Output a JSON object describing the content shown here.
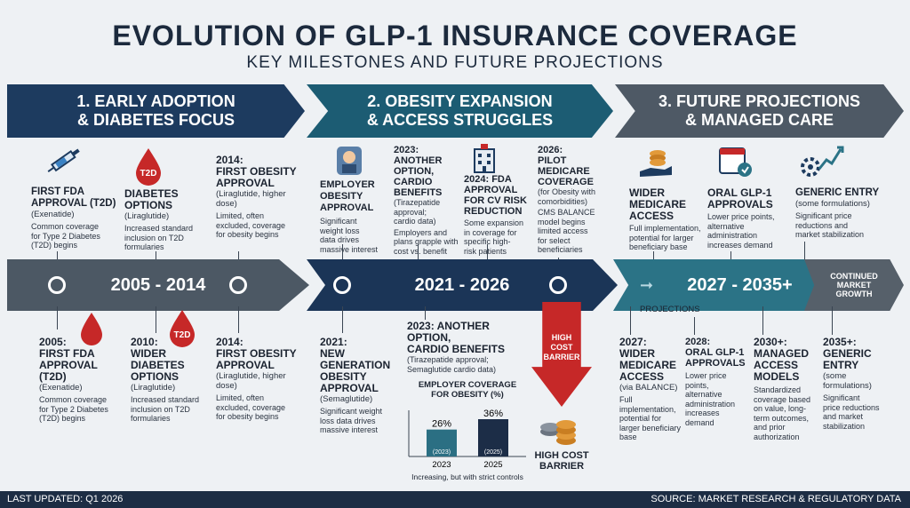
{
  "header": {
    "title": "EVOLUTION OF GLP-1 INSURANCE COVERAGE",
    "subtitle": "KEY MILESTONES AND FUTURE PROJECTIONS"
  },
  "phases": [
    "1. EARLY ADOPTION\n& DIABETES FOCUS",
    "2. OBESITY EXPANSION\n& ACCESS STRUGGLES",
    "3. FUTURE PROJECTIONS\n& MANAGED CARE"
  ],
  "timeline": {
    "p1": "2005 - 2014",
    "p2": "2021 - 2026",
    "p3": "2027 - 2035+",
    "continued": "CONTINUED\nMARKET\nGROWTH",
    "projections": "PROJECTIONS"
  },
  "top": [
    {
      "title": "FIRST FDA\nAPPROVAL (T2D)",
      "sub": "(Exenatide)",
      "desc": "Common coverage\nfor Type 2 Diabetes\n(T2D) begins"
    },
    {
      "title": "DIABETES\nOPTIONS",
      "sub": "(Liraglutide)",
      "desc": "Increased standard\ninclusion on T2D\nformularies",
      "badge": "T2D"
    },
    {
      "title": "2014:\nFIRST OBESITY\nAPPROVAL",
      "sub": "(Liraglutide, higher\ndose)",
      "desc": "Limited, often\nexcluded, coverage\nfor obesity begins"
    },
    {
      "title": "EMPLOYER\nOBESITY\nAPPROVAL",
      "desc": "Significant\nweight loss\ndata drives\nmassive interest"
    },
    {
      "title": "2023:\nANOTHER\nOPTION,\nCARDIO\nBENEFITS",
      "sub": "(Tirazepatide\napproval;\ncardio data)",
      "desc": "Employers and\nplans grapple with\ncost vs. benefit"
    },
    {
      "title": "2024: FDA\nAPPROVAL\nFOR CV RISK\nREDUCTION",
      "desc": "Some expansion\nin coverage for\nspecific high-\nrisk patients"
    },
    {
      "title": "2026:\nPILOT\nMEDICARE\nCOVERAGE",
      "sub": "(for Obesity with\ncomorbidities)",
      "desc": "CMS BALANCE\nmodel begins\nlimited access\nfor select\nbeneficiaries"
    },
    {
      "title": "WIDER\nMEDICARE\nACCESS",
      "desc": "Full implementation,\npotential for larger\nbeneficiary base"
    },
    {
      "title": "ORAL GLP-1\nAPPROVALS",
      "desc": "Lower price points,\nalternative\nadministration\nincreases demand"
    },
    {
      "title": "GENERIC ENTRY",
      "sub": "(some formulations)",
      "desc": "Significant price\nreductions and\nmarket stabilization"
    }
  ],
  "bottom": [
    {
      "title": "2005:\nFIRST FDA\nAPPROVAL\n(T2D)",
      "sub": "(Exenatide)",
      "desc": "Common coverage\nfor Type 2 Diabetes\n(T2D) begins"
    },
    {
      "title": "2010:\nWIDER\nDIABETES\nOPTIONS",
      "sub": "(Liraglutide)",
      "desc": "Increased standard\ninclusion on T2D\nformularies",
      "badge": "T2D"
    },
    {
      "title": "2014:\nFIRST OBESITY\nAPPROVAL",
      "sub": "(Liraglutide, higher\ndose)",
      "desc": "Limited, often\nexcluded, coverage\nfor obesity begins"
    },
    {
      "title": "2021:\nNEW\nGENERATION\nOBESITY\nAPPROVAL",
      "sub": "(Semaglutide)",
      "desc": "Significant weight\nloss data drives\nmassive interest"
    },
    {
      "title": "2023: ANOTHER\nOPTION,\nCARDIO BENEFITS",
      "sub": "(Tirazepatide approval;\nSemaglutide cardio data)"
    },
    {
      "title": "2027:\nWIDER\nMEDICARE\nACCESS",
      "sub": "(via BALANCE)",
      "desc": "Full\nimplementation,\npotential for\nlarger beneficiary\nbase"
    },
    {
      "title": "2028:\nORAL GLP-1\nAPPROVALS",
      "desc": "Lower price\npoints,\nalternative\nadministration\nincreases\ndemand"
    },
    {
      "title": "2030+:\nMANAGED\nACCESS\nMODELS",
      "desc": "Standardized\ncoverage based\non value, long-\nterm outcomes,\nand prior\nauthorization"
    },
    {
      "title": "2035+:\nGENERIC\nENTRY",
      "sub": "(some\nformulations)",
      "desc": "Significant\nprice reductions\nand market\nstabilization"
    }
  ],
  "barrier": {
    "arrow_label": "HIGH\nCOST\nBARRIER",
    "label": "HIGH COST\nBARRIER"
  },
  "chart_data": {
    "type": "bar",
    "title": "EMPLOYER COVERAGE\nFOR OBESITY (%)",
    "categories": [
      "2023",
      "2025"
    ],
    "values": [
      26,
      36
    ],
    "value_labels": [
      "26%",
      "36%"
    ],
    "bar_inner_labels": [
      "(2023)",
      "(2025)"
    ],
    "colors": [
      "#2b6f83",
      "#1c2d47"
    ],
    "caption": "Increasing, but with strict controls"
  },
  "footer": {
    "left": "LAST UPDATED: Q1 2026",
    "right": "SOURCE: MARKET RESEARCH & REGULATORY DATA"
  },
  "colors": {
    "navy": "#1d3b5f",
    "teal": "#1c5c73",
    "slate": "#4e5965",
    "red": "#c62828"
  }
}
